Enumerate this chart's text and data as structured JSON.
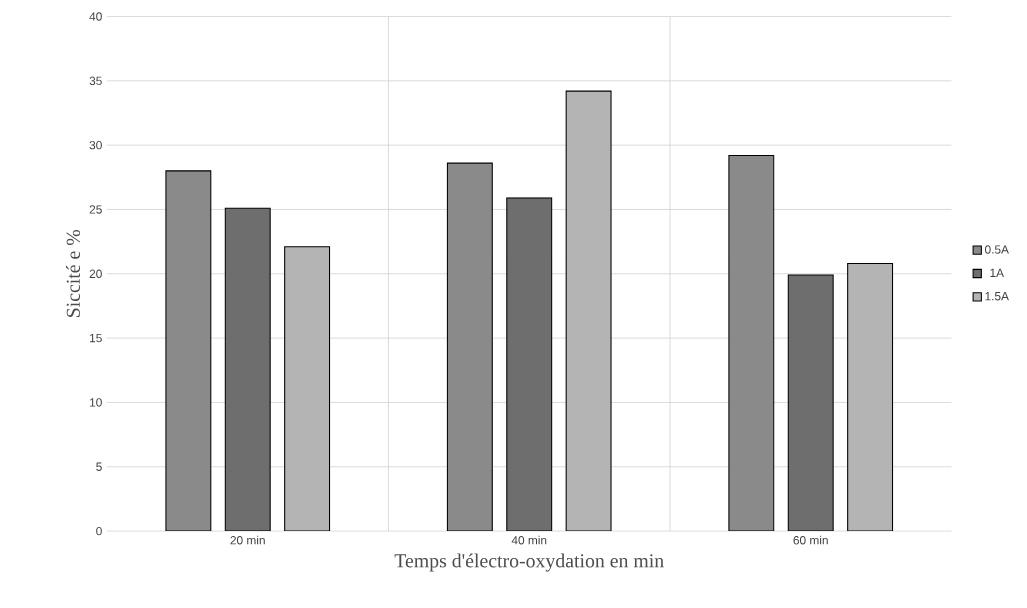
{
  "chart_data": {
    "type": "bar",
    "xlabel": "Temps d'électro-oxydation en min",
    "ylabel": "Siccité e %",
    "categories": [
      "20 min",
      "40 min",
      "60 min"
    ],
    "series": [
      {
        "name": "0.5A",
        "color": "#8a8a8a",
        "values": [
          28.0,
          28.6,
          29.2
        ]
      },
      {
        "name": "1A",
        "color": "#6e6e6e",
        "values": [
          25.1,
          25.9,
          19.9
        ]
      },
      {
        "name": "1.5A",
        "color": "#b4b4b4",
        "values": [
          22.1,
          34.2,
          20.8
        ]
      }
    ],
    "ylim": [
      0,
      40
    ],
    "yticks": [
      0,
      5,
      10,
      15,
      20,
      25,
      30,
      35,
      40
    ],
    "grid": true,
    "legend": "right"
  }
}
